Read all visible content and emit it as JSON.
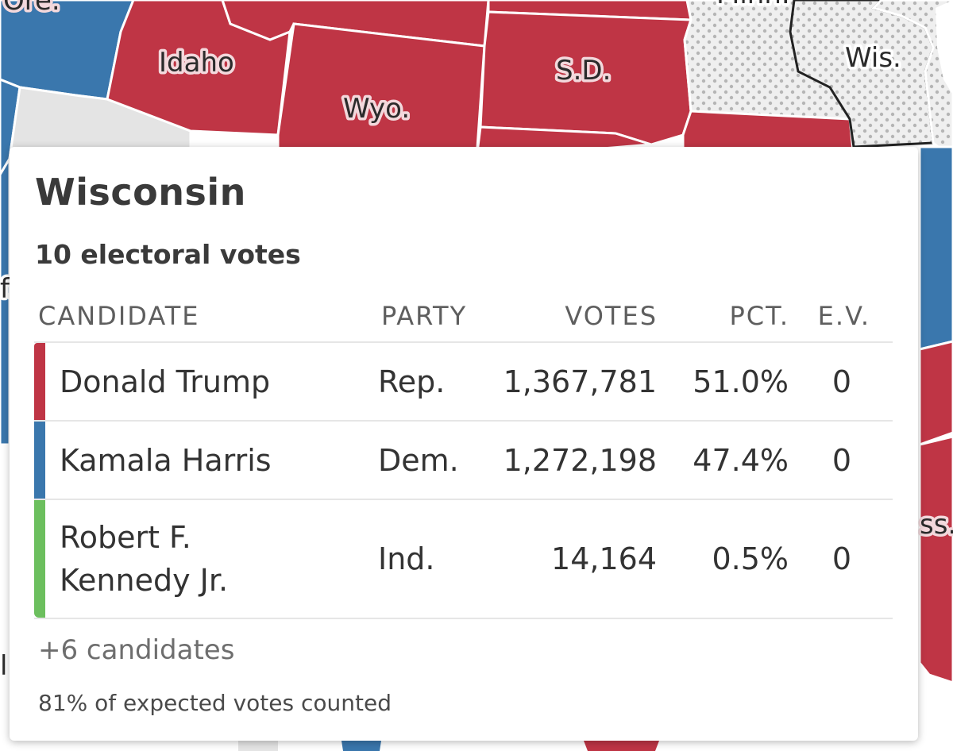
{
  "map": {
    "labels": {
      "ore": "Ore.",
      "idaho": "Idaho",
      "wyo": "Wyo.",
      "sd": "S.D.",
      "minn": "Minn.",
      "wis": "Wis.",
      "calif_partial": "f.",
      "miss_partial": "ss.",
      "left_edge_partial": "l"
    },
    "colors": {
      "rep": "#bf3545",
      "dem": "#3a77ad",
      "uncalled": "#e4e4e4",
      "pending": "#ececec"
    }
  },
  "tooltip": {
    "state": "Wisconsin",
    "electoral_votes_text": "10 electoral votes",
    "columns": {
      "candidate": "CANDIDATE",
      "party": "PARTY",
      "votes": "VOTES",
      "pct": "PCT.",
      "ev": "E.V."
    },
    "rows": [
      {
        "name": "Donald Trump",
        "party": "Rep.",
        "votes": "1,367,781",
        "pct": "51.0%",
        "ev": "0",
        "color": "#bf3545"
      },
      {
        "name": "Kamala Harris",
        "party": "Dem.",
        "votes": "1,272,198",
        "pct": "47.4%",
        "ev": "0",
        "color": "#3a77ad"
      },
      {
        "name": "Robert F. Kennedy Jr.",
        "party": "Ind.",
        "votes": "14,164",
        "pct": "0.5%",
        "ev": "0",
        "color": "#6cbf5e"
      }
    ],
    "more_candidates": "+6 candidates",
    "counted_text": "81% of expected votes counted"
  }
}
